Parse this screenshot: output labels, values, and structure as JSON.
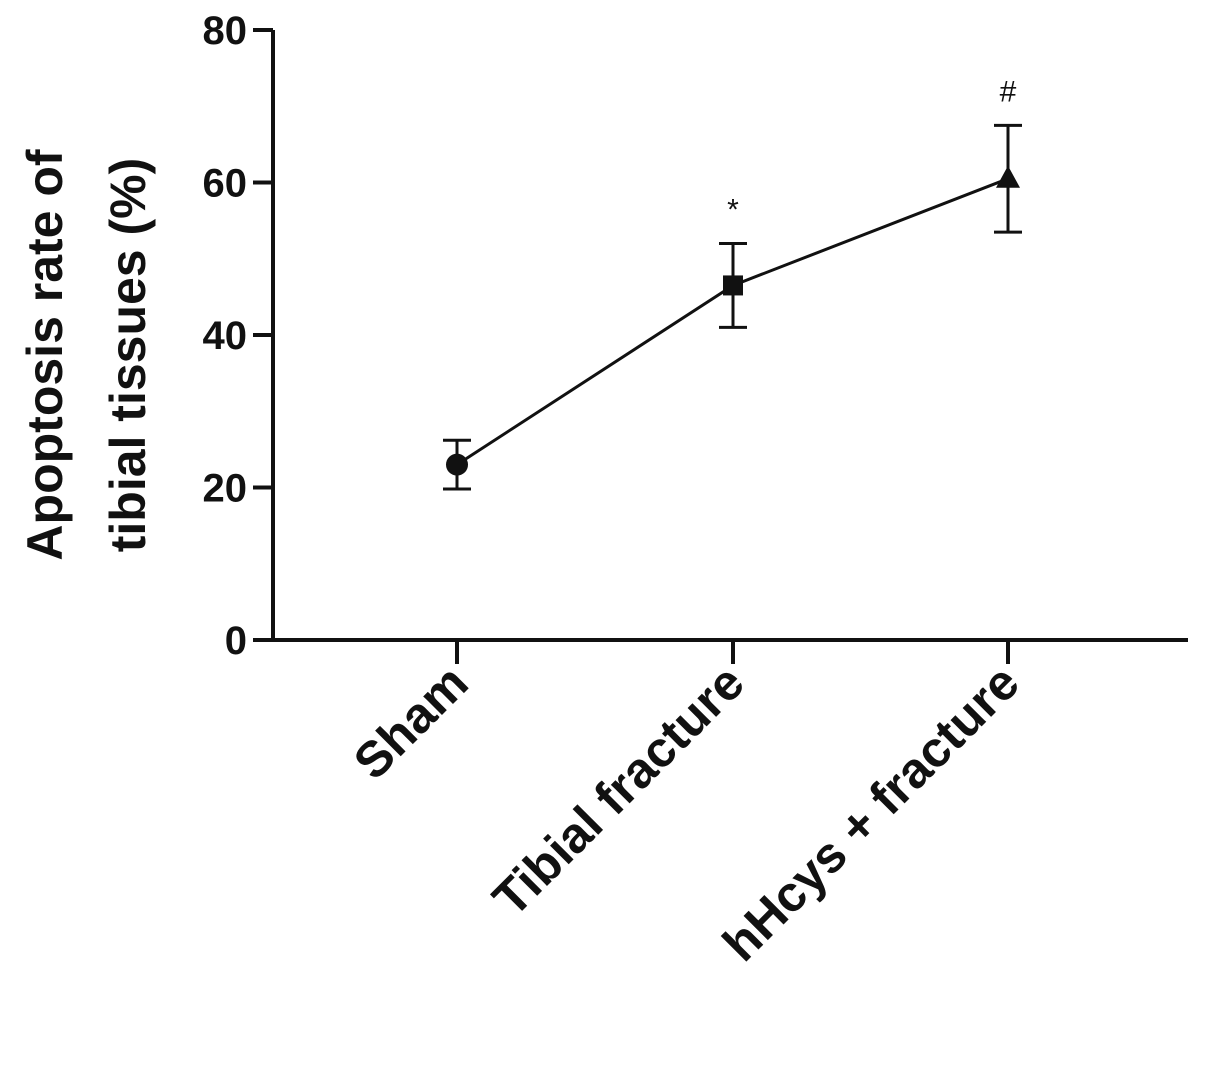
{
  "chart_data": {
    "type": "line",
    "categories": [
      "Sham",
      "Tibial fracture",
      "hHcys + fracture"
    ],
    "series": [
      {
        "values": [
          23,
          46.5,
          60.5
        ],
        "error": [
          3.2,
          5.5,
          7
        ],
        "markers": [
          "circle",
          "square",
          "triangle"
        ]
      }
    ],
    "annotations": [
      "",
      "*",
      "#"
    ],
    "ylabel_lines": [
      "Apoptosis rate of",
      "tibial tissues (%)"
    ],
    "ylim": [
      0,
      80
    ],
    "yticks": [
      0,
      20,
      40,
      60,
      80
    ],
    "grid": false,
    "line_color": "#111111"
  }
}
